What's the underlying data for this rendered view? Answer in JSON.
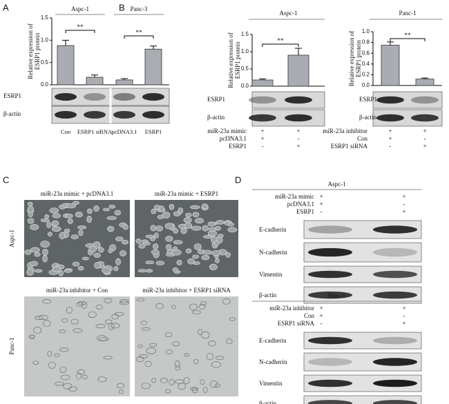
{
  "panel_labels": [
    "A",
    "B",
    "C",
    "D"
  ],
  "chart_data": [
    {
      "type": "bar",
      "groups": [
        "Aspc-1",
        "Panc-3"
      ],
      "ylabel": [
        "Relative expression of",
        "ESRP1 protein"
      ],
      "categories": [
        "Con",
        "ESRP1 siRNA",
        "pcDNA3.1",
        "ESRP1"
      ],
      "values": [
        0.88,
        0.17,
        0.11,
        0.8
      ],
      "errors": [
        0.12,
        0.05,
        0.03,
        0.07
      ],
      "significance": [
        "**",
        "**"
      ],
      "color": "#a9adb3",
      "ylim": [
        0,
        1.5
      ],
      "yticks": [
        {
          "value": 0,
          "label": "0.0"
        },
        0.5,
        {
          "value": 1,
          "label": "1.0"
        },
        1.5
      ]
    },
    {
      "type": "bar",
      "title": "Aspc-1",
      "ylabel": [
        "Relative expression of",
        "ESRP1 protein"
      ],
      "values": [
        0.18,
        0.9
      ],
      "errors": [
        0.03,
        0.2
      ],
      "significance": [
        "**"
      ],
      "color": "#a9adb3",
      "ylim": [
        0,
        1.5
      ],
      "yticks": [
        {
          "value": 0,
          "label": "0.0"
        },
        0.5,
        {
          "value": 1,
          "label": "1.0"
        },
        1.5
      ]
    },
    {
      "type": "bar",
      "title": "Panc-1",
      "ylabel": [
        "Relative expression of",
        "ESRP1 protein"
      ],
      "values": [
        0.75,
        0.12
      ],
      "errors": [
        0.06,
        0.02
      ],
      "significance": [
        "**"
      ],
      "color": "#a9adb3",
      "ylim": [
        0,
        1
      ],
      "yticks": [
        {
          "value": 0,
          "label": "0.0"
        },
        0.2,
        0.4,
        0.6,
        0.8,
        {
          "value": 1,
          "label": "1.0"
        }
      ]
    }
  ],
  "blot_a": [
    "ESRP1",
    "β-actin"
  ],
  "blot_b1": {
    "blots": [
      "ESRP1",
      "β-actin"
    ],
    "conditions": [
      {
        "label": "miR-23a mimic",
        "marks": [
          "+",
          "+"
        ]
      },
      {
        "label": "pcDNA3.1",
        "marks": [
          "+",
          "-"
        ]
      },
      {
        "label": "ESRP1",
        "marks": [
          "-",
          "+"
        ]
      }
    ]
  },
  "blot_b2": {
    "blots": [
      "ESRP1",
      "β-actin"
    ],
    "conditions": [
      {
        "label": "miR-23a inhibitor",
        "marks": [
          "+",
          "+"
        ]
      },
      {
        "label": "Con",
        "marks": [
          "+",
          "-"
        ]
      },
      {
        "label": "ESRP1 siRNA",
        "marks": [
          "-",
          "+"
        ]
      }
    ]
  },
  "panel_c": {
    "images": [
      "miR-23a mimic + pcDNA3.1",
      "miR-23a mimic + ESRP1",
      "miR-23a inhibitor + Con",
      "miR-23a inhibitor + ESRP1 siRNA"
    ],
    "rows": [
      "Aspc-1",
      "Panc-1"
    ]
  },
  "panel_d": [
    {
      "title": "Aspc-1",
      "conditions": [
        {
          "label": "miR-23a mimic",
          "marks": [
            "+",
            "+"
          ]
        },
        {
          "label": "pcDNA3.1",
          "marks": [
            "+",
            "-"
          ]
        },
        {
          "label": "ESRP1",
          "marks": [
            "-",
            "+"
          ]
        }
      ],
      "blots": [
        "E-cadherin",
        "N-cadherin",
        "Vimentin",
        "β-actin"
      ]
    },
    {
      "title": "Panc-1",
      "conditions": [
        {
          "label": "miR-23a inhibitor",
          "marks": [
            "+",
            "+"
          ]
        },
        {
          "label": "Con",
          "marks": [
            "+",
            "-"
          ]
        },
        {
          "label": "ESRP1 siRNA",
          "marks": [
            "-",
            "+"
          ]
        }
      ],
      "blots": [
        "E-cadherin",
        "N-cadherin",
        "Vimentin",
        "β-actin"
      ]
    }
  ]
}
